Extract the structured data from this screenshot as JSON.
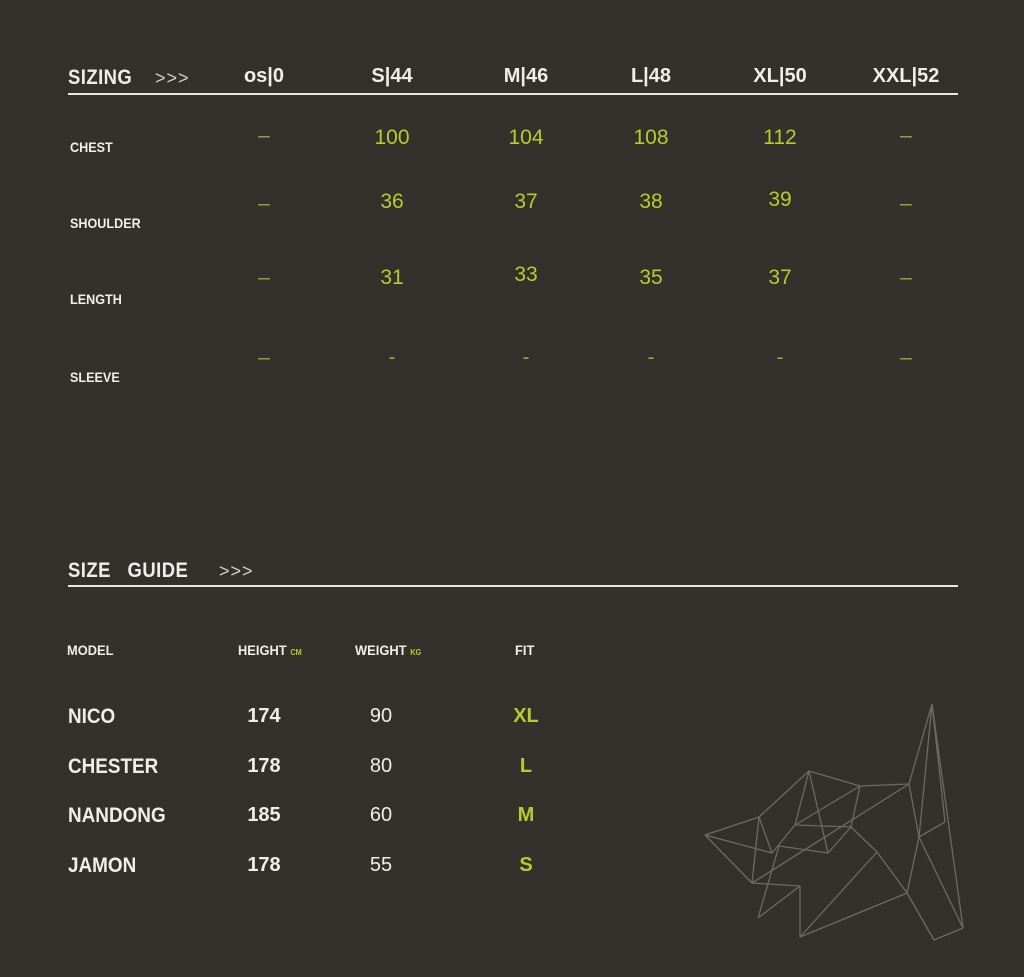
{
  "sizing": {
    "title": "SIZING",
    "arrows": ">>>",
    "sizes": [
      "os|0",
      "S|44",
      "M|46",
      "L|48",
      "XL|50",
      "XXL|52"
    ],
    "rows": [
      {
        "label": "CHEST",
        "values": [
          "–",
          "100",
          "104",
          "108",
          "112",
          "–"
        ]
      },
      {
        "label": "SHOULDER",
        "values": [
          "–",
          "36",
          "37",
          "38",
          "39",
          "–"
        ]
      },
      {
        "label": "LENGTH",
        "values": [
          "–",
          "31",
          "33",
          "35",
          "37",
          "–"
        ]
      },
      {
        "label": "SLEEVE",
        "values": [
          "–",
          "-",
          "-",
          "-",
          "-",
          "–"
        ]
      }
    ]
  },
  "guide": {
    "title": "SIZE   GUIDE",
    "arrows": ">>>",
    "headers": {
      "model": "MODEL",
      "height": "HEIGHT",
      "height_unit": "CM",
      "weight": "WEIGHT",
      "weight_unit": "KG",
      "fit": "FIT"
    },
    "models": [
      {
        "name": "NICO",
        "height": "174",
        "weight": "90",
        "fit": "XL"
      },
      {
        "name": "CHESTER",
        "height": "178",
        "weight": "80",
        "fit": "L"
      },
      {
        "name": "NANDONG",
        "height": "185",
        "weight": "60",
        "fit": "M"
      },
      {
        "name": "JAMON",
        "height": "178",
        "weight": "55",
        "fit": "S"
      }
    ]
  },
  "colors": {
    "background": "#34312d",
    "accent": "#b6cc2c",
    "text": "#eeeeea"
  },
  "decoration": "wireframe-polygon-wolf-head"
}
